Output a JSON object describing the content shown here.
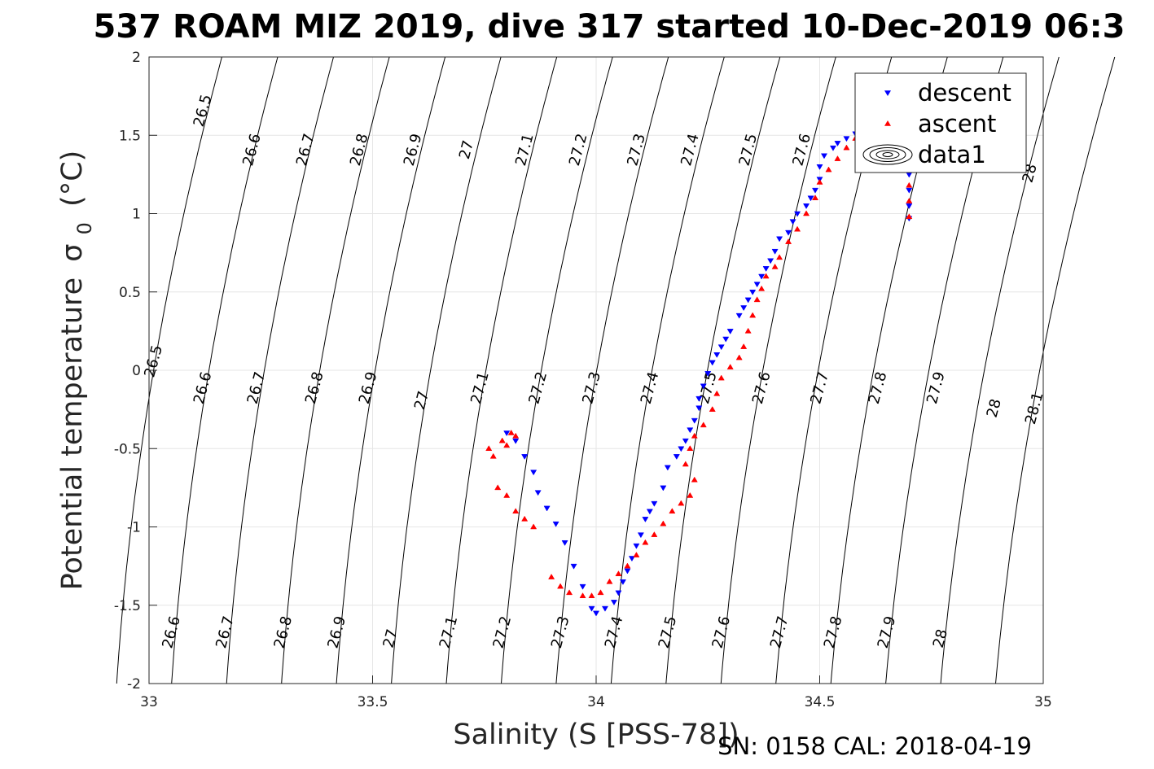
{
  "chart_data": {
    "type": "scatter",
    "title": "537 ROAM MIZ 2019, dive 317 started 10-Dec-2019 06:3",
    "xlabel": "Salinity (S [PSS-78])",
    "ylabel": "Potential temperature",
    "ylabel_symbol": "σ",
    "ylabel_subscript": "0",
    "ylabel_unit": "(°C)",
    "xlim": [
      33,
      35
    ],
    "ylim": [
      -2,
      2
    ],
    "x_ticks": [
      33,
      33.5,
      34,
      34.5,
      35
    ],
    "x_tick_labels": [
      "33",
      "33.5",
      "34",
      "34.5",
      "35"
    ],
    "y_ticks": [
      -2,
      -1.5,
      -1,
      -0.5,
      0,
      0.5,
      1,
      1.5,
      2
    ],
    "y_tick_labels": [
      "-2",
      "-1.5",
      "-1",
      "-0.5",
      "0",
      "0.5",
      "1",
      "1.5",
      "2"
    ],
    "grid": true,
    "legend_position": "top-right",
    "footer_text": "SN: 0158  CAL: 2018-04-19",
    "contours": {
      "levels": [
        26.5,
        26.6,
        26.7,
        26.8,
        26.9,
        27,
        27.1,
        27.2,
        27.3,
        27.4,
        27.5,
        27.6,
        27.7,
        27.8,
        27.9,
        28,
        28.1
      ],
      "labels": [
        {
          "text": "26.5",
          "x": 33.13,
          "y": 1.65
        },
        {
          "text": "26.6",
          "x": 33.24,
          "y": 1.4
        },
        {
          "text": "26.7",
          "x": 33.36,
          "y": 1.4
        },
        {
          "text": "26.8",
          "x": 33.48,
          "y": 1.4
        },
        {
          "text": "26.9",
          "x": 33.6,
          "y": 1.4
        },
        {
          "text": "27",
          "x": 33.72,
          "y": 1.4
        },
        {
          "text": "27.1",
          "x": 33.85,
          "y": 1.4
        },
        {
          "text": "27.2",
          "x": 33.97,
          "y": 1.4
        },
        {
          "text": "27.3",
          "x": 34.1,
          "y": 1.4
        },
        {
          "text": "27.4",
          "x": 34.22,
          "y": 1.4
        },
        {
          "text": "27.5",
          "x": 34.35,
          "y": 1.4
        },
        {
          "text": "27.6",
          "x": 34.47,
          "y": 1.4
        },
        {
          "text": "28",
          "x": 34.98,
          "y": 1.25
        },
        {
          "text": "26.5",
          "x": 33.02,
          "y": 0.05
        },
        {
          "text": "26.6",
          "x": 33.13,
          "y": -0.12
        },
        {
          "text": "26.7",
          "x": 33.25,
          "y": -0.12
        },
        {
          "text": "26.8",
          "x": 33.38,
          "y": -0.12
        },
        {
          "text": "26.9",
          "x": 33.5,
          "y": -0.12
        },
        {
          "text": "27",
          "x": 33.62,
          "y": -0.2
        },
        {
          "text": "27.1",
          "x": 33.75,
          "y": -0.12
        },
        {
          "text": "27.2",
          "x": 33.88,
          "y": -0.12
        },
        {
          "text": "27.3",
          "x": 34.0,
          "y": -0.12
        },
        {
          "text": "27.4",
          "x": 34.13,
          "y": -0.12
        },
        {
          "text": "27.5",
          "x": 34.26,
          "y": -0.12
        },
        {
          "text": "27.6",
          "x": 34.38,
          "y": -0.12
        },
        {
          "text": "27.7",
          "x": 34.51,
          "y": -0.12
        },
        {
          "text": "27.8",
          "x": 34.64,
          "y": -0.12
        },
        {
          "text": "27.9",
          "x": 34.77,
          "y": -0.12
        },
        {
          "text": "28",
          "x": 34.9,
          "y": -0.25
        },
        {
          "text": "28.1",
          "x": 34.99,
          "y": -0.25
        },
        {
          "text": "26.6",
          "x": 33.06,
          "y": -1.68
        },
        {
          "text": "26.7",
          "x": 33.18,
          "y": -1.68
        },
        {
          "text": "26.8",
          "x": 33.31,
          "y": -1.68
        },
        {
          "text": "26.9",
          "x": 33.43,
          "y": -1.68
        },
        {
          "text": "27",
          "x": 33.55,
          "y": -1.72
        },
        {
          "text": "27.1",
          "x": 33.68,
          "y": -1.68
        },
        {
          "text": "27.2",
          "x": 33.8,
          "y": -1.68
        },
        {
          "text": "27.3",
          "x": 33.93,
          "y": -1.68
        },
        {
          "text": "27.4",
          "x": 34.05,
          "y": -1.68
        },
        {
          "text": "27.5",
          "x": 34.17,
          "y": -1.68
        },
        {
          "text": "27.6",
          "x": 34.29,
          "y": -1.68
        },
        {
          "text": "27.7",
          "x": 34.42,
          "y": -1.68
        },
        {
          "text": "27.8",
          "x": 34.54,
          "y": -1.68
        },
        {
          "text": "27.9",
          "x": 34.66,
          "y": -1.68
        },
        {
          "text": "28",
          "x": 34.78,
          "y": -1.72
        }
      ]
    },
    "series": [
      {
        "name": "descent",
        "marker": "triangle-down",
        "color": "#0000ff",
        "points": [
          [
            34.7,
            0.97
          ],
          [
            34.7,
            1.05
          ],
          [
            34.7,
            1.15
          ],
          [
            34.7,
            1.25
          ],
          [
            34.7,
            1.35
          ],
          [
            34.7,
            1.45
          ],
          [
            34.69,
            1.52
          ],
          [
            34.62,
            1.58
          ],
          [
            34.6,
            1.54
          ],
          [
            34.58,
            1.51
          ],
          [
            34.56,
            1.48
          ],
          [
            34.54,
            1.45
          ],
          [
            34.53,
            1.42
          ],
          [
            34.51,
            1.37
          ],
          [
            34.5,
            1.3
          ],
          [
            34.5,
            1.22
          ],
          [
            34.49,
            1.15
          ],
          [
            34.48,
            1.1
          ],
          [
            34.47,
            1.05
          ],
          [
            34.45,
            1.0
          ],
          [
            34.44,
            0.95
          ],
          [
            34.43,
            0.88
          ],
          [
            34.41,
            0.84
          ],
          [
            34.4,
            0.76
          ],
          [
            34.39,
            0.7
          ],
          [
            34.38,
            0.65
          ],
          [
            34.37,
            0.6
          ],
          [
            34.36,
            0.55
          ],
          [
            34.35,
            0.5
          ],
          [
            34.34,
            0.45
          ],
          [
            34.33,
            0.4
          ],
          [
            34.32,
            0.35
          ],
          [
            34.3,
            0.25
          ],
          [
            34.29,
            0.2
          ],
          [
            34.28,
            0.15
          ],
          [
            34.27,
            0.1
          ],
          [
            34.26,
            0.05
          ],
          [
            34.25,
            -0.02
          ],
          [
            34.24,
            -0.1
          ],
          [
            34.23,
            -0.18
          ],
          [
            34.23,
            -0.24
          ],
          [
            34.22,
            -0.32
          ],
          [
            34.21,
            -0.38
          ],
          [
            34.2,
            -0.45
          ],
          [
            34.19,
            -0.5
          ],
          [
            34.18,
            -0.55
          ],
          [
            34.16,
            -0.62
          ],
          [
            34.15,
            -0.75
          ],
          [
            34.13,
            -0.85
          ],
          [
            34.12,
            -0.9
          ],
          [
            34.11,
            -0.95
          ],
          [
            34.1,
            -1.05
          ],
          [
            34.09,
            -1.12
          ],
          [
            34.08,
            -1.2
          ],
          [
            34.07,
            -1.28
          ],
          [
            34.06,
            -1.35
          ],
          [
            34.05,
            -1.42
          ],
          [
            34.04,
            -1.48
          ],
          [
            34.02,
            -1.52
          ],
          [
            34.0,
            -1.55
          ],
          [
            33.99,
            -1.52
          ],
          [
            33.97,
            -1.38
          ],
          [
            33.95,
            -1.25
          ],
          [
            33.93,
            -1.1
          ],
          [
            33.91,
            -0.98
          ],
          [
            33.89,
            -0.88
          ],
          [
            33.87,
            -0.78
          ],
          [
            33.86,
            -0.65
          ],
          [
            33.84,
            -0.55
          ],
          [
            33.82,
            -0.45
          ],
          [
            33.8,
            -0.4
          ]
        ]
      },
      {
        "name": "ascent",
        "marker": "triangle-up",
        "color": "#ff0000",
        "points": [
          [
            34.7,
            0.98
          ],
          [
            34.7,
            1.08
          ],
          [
            34.7,
            1.18
          ],
          [
            34.7,
            1.3
          ],
          [
            34.7,
            1.4
          ],
          [
            34.69,
            1.5
          ],
          [
            34.6,
            1.52
          ],
          [
            34.58,
            1.48
          ],
          [
            34.56,
            1.42
          ],
          [
            34.54,
            1.35
          ],
          [
            34.52,
            1.28
          ],
          [
            34.5,
            1.2
          ],
          [
            34.49,
            1.1
          ],
          [
            34.47,
            1.0
          ],
          [
            34.45,
            0.9
          ],
          [
            34.43,
            0.82
          ],
          [
            34.41,
            0.72
          ],
          [
            34.4,
            0.66
          ],
          [
            34.38,
            0.6
          ],
          [
            34.37,
            0.52
          ],
          [
            34.36,
            0.45
          ],
          [
            34.35,
            0.35
          ],
          [
            34.34,
            0.25
          ],
          [
            34.33,
            0.15
          ],
          [
            34.32,
            0.08
          ],
          [
            34.3,
            0.02
          ],
          [
            34.28,
            -0.05
          ],
          [
            34.27,
            -0.15
          ],
          [
            34.26,
            -0.25
          ],
          [
            34.24,
            -0.35
          ],
          [
            34.22,
            -0.42
          ],
          [
            34.21,
            -0.5
          ],
          [
            34.2,
            -0.6
          ],
          [
            34.22,
            -0.7
          ],
          [
            34.21,
            -0.8
          ],
          [
            34.19,
            -0.85
          ],
          [
            34.17,
            -0.9
          ],
          [
            34.15,
            -0.98
          ],
          [
            34.13,
            -1.05
          ],
          [
            34.11,
            -1.1
          ],
          [
            34.09,
            -1.18
          ],
          [
            34.07,
            -1.25
          ],
          [
            34.05,
            -1.3
          ],
          [
            34.03,
            -1.35
          ],
          [
            34.01,
            -1.42
          ],
          [
            33.99,
            -1.44
          ],
          [
            33.97,
            -1.44
          ],
          [
            33.94,
            -1.42
          ],
          [
            33.92,
            -1.38
          ],
          [
            33.9,
            -1.32
          ],
          [
            33.86,
            -1.0
          ],
          [
            33.84,
            -0.95
          ],
          [
            33.82,
            -0.9
          ],
          [
            33.8,
            -0.8
          ],
          [
            33.78,
            -0.75
          ],
          [
            33.77,
            -0.55
          ],
          [
            33.79,
            -0.45
          ],
          [
            33.81,
            -0.4
          ],
          [
            33.82,
            -0.42
          ],
          [
            33.8,
            -0.48
          ],
          [
            33.76,
            -0.5
          ]
        ]
      },
      {
        "name": "data1",
        "marker": "contour",
        "color": "#000000",
        "points": []
      }
    ]
  }
}
